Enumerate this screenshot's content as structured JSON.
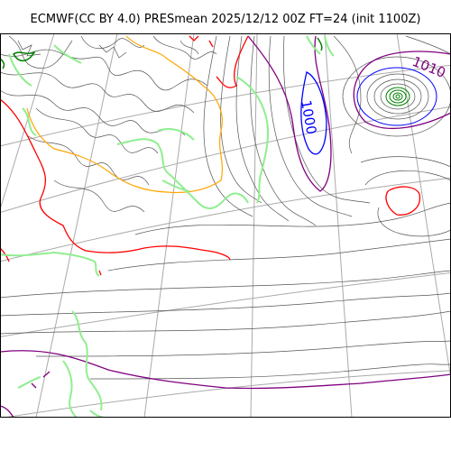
{
  "title": "ECMWF(CC BY 4.0) PRESmean 2025/12/12 00Z FT=24 (init 1100Z)",
  "contour_labels": [
    {
      "text": "1000",
      "color": "#0000ff"
    },
    {
      "text": "1010",
      "color": "#800080"
    }
  ],
  "colors": {
    "isobar": "#555555",
    "blue_isobar": "#0000ff",
    "purple_isobar": "#800080",
    "red_isobar": "#ff0000",
    "orange_isobar": "#ffa500",
    "green_coast": "#90ee90",
    "dark_green": "#008000",
    "graticule": "#aaaaaa"
  }
}
